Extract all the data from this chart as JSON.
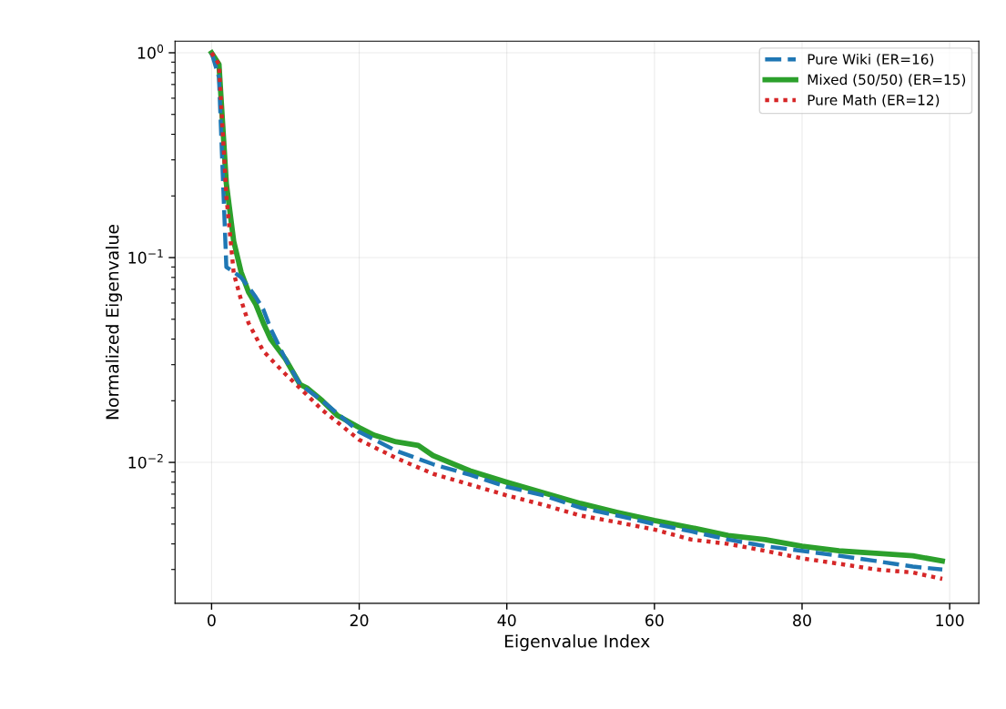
{
  "chart_data": {
    "type": "line",
    "xlabel": "Eigenvalue Index",
    "ylabel": "Normalized Eigenvalue",
    "log": "y",
    "grid": true,
    "legend": "top right",
    "xlim": [
      -4.95,
      103.95
    ],
    "xticks": [
      0,
      20,
      40,
      60,
      80,
      100
    ],
    "ylim": [
      0.00205,
      1.14
    ],
    "yticks": [
      {
        "value": 1,
        "label": "10$^{0}$"
      },
      {
        "value": 0.1,
        "label": "10$^{−1}$"
      },
      {
        "value": 0.01,
        "label": "10$^{−2}$"
      }
    ],
    "series": [
      {
        "name": "Pure Wiki (ER=16)",
        "color": "#1f77b4",
        "line_style": "dashed",
        "x": [
          0,
          1,
          2,
          3,
          4,
          5,
          6,
          7,
          8,
          10,
          12,
          15,
          20,
          25,
          30,
          35,
          40,
          45,
          50,
          55,
          60,
          65,
          70,
          75,
          80,
          85,
          90,
          95,
          99
        ],
        "values": [
          1.0,
          0.76,
          0.09,
          0.085,
          0.08,
          0.072,
          0.064,
          0.056,
          0.045,
          0.032,
          0.024,
          0.02,
          0.0141,
          0.0114,
          0.0098,
          0.0087,
          0.0076,
          0.0069,
          0.006,
          0.0055,
          0.005,
          0.0046,
          0.0042,
          0.0039,
          0.0037,
          0.0035,
          0.0033,
          0.0031,
          0.003
        ]
      },
      {
        "name": "Mixed (50/50) (ER=15)",
        "color": "#2ca02c",
        "line_style": "solid",
        "x": [
          0,
          1,
          2,
          3,
          4,
          5,
          6,
          7,
          8,
          10,
          12,
          13,
          15,
          17,
          20,
          22,
          25,
          28,
          30,
          35,
          40,
          45,
          50,
          55,
          60,
          65,
          70,
          75,
          80,
          85,
          90,
          95,
          99
        ],
        "values": [
          1.0,
          0.88,
          0.23,
          0.12,
          0.085,
          0.068,
          0.059,
          0.048,
          0.04,
          0.032,
          0.024,
          0.023,
          0.02,
          0.017,
          0.0148,
          0.0136,
          0.0126,
          0.0121,
          0.0108,
          0.0091,
          0.008,
          0.0071,
          0.0063,
          0.0057,
          0.0052,
          0.0048,
          0.0044,
          0.0042,
          0.0039,
          0.0037,
          0.0036,
          0.0035,
          0.0033
        ]
      },
      {
        "name": "Pure Math (ER=12)",
        "color": "#d62728",
        "line_style": "dotted",
        "x": [
          0,
          1,
          2,
          3,
          4,
          5,
          6,
          7,
          8,
          10,
          12,
          15,
          20,
          25,
          30,
          35,
          40,
          45,
          50,
          55,
          60,
          65,
          70,
          75,
          80,
          85,
          90,
          95,
          99
        ],
        "values": [
          1.0,
          0.88,
          0.2,
          0.084,
          0.062,
          0.048,
          0.041,
          0.035,
          0.032,
          0.027,
          0.023,
          0.018,
          0.0129,
          0.0105,
          0.0088,
          0.0078,
          0.0069,
          0.0062,
          0.0055,
          0.0051,
          0.0047,
          0.0042,
          0.004,
          0.0037,
          0.0034,
          0.0032,
          0.003,
          0.0029,
          0.0027
        ]
      }
    ]
  }
}
